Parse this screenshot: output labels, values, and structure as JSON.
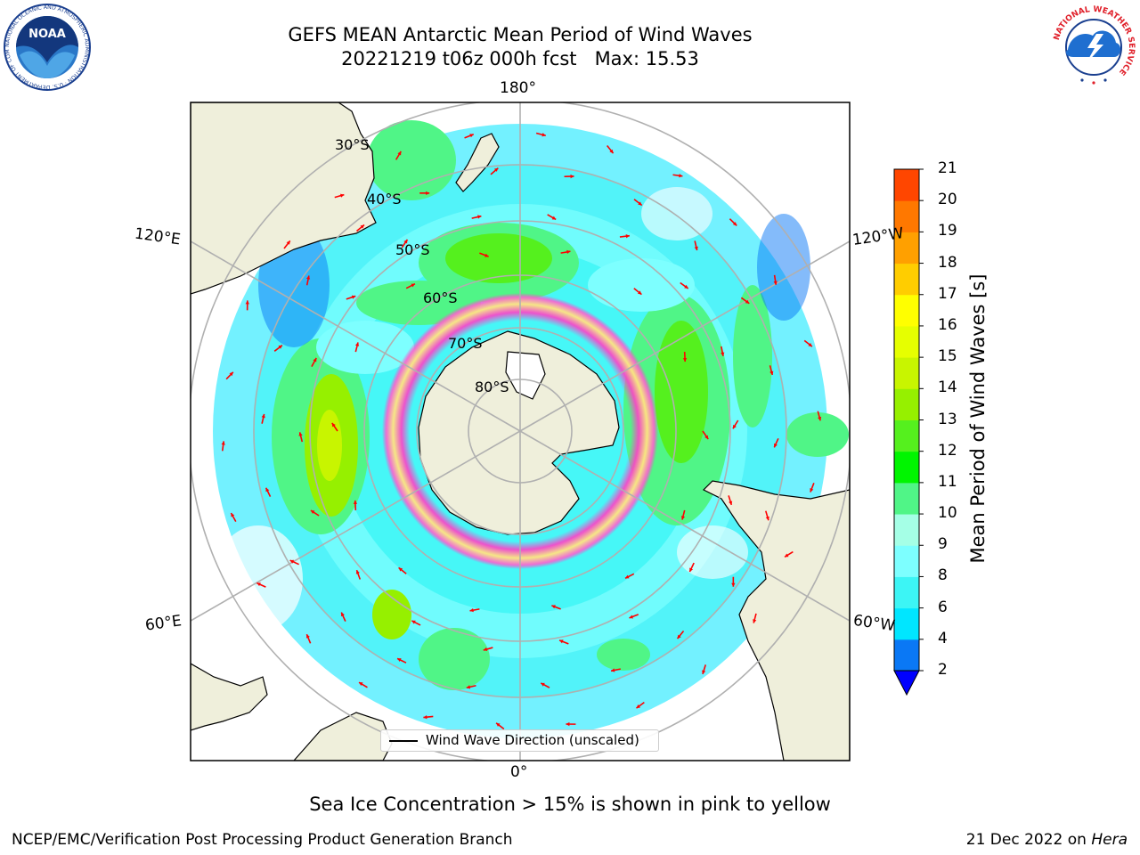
{
  "title": {
    "line1": "GEFS MEAN Antarctic Mean Period of Wind Waves",
    "line2": "20221219 t06z 000h fcst   Max: 15.53"
  },
  "longitude_labels": {
    "top": "180°",
    "bottom": "0°",
    "upper_left": "120°E",
    "lower_left": "60°E",
    "upper_right": "120°W",
    "lower_right": "60°W"
  },
  "latitude_labels": [
    "30°S",
    "40°S",
    "50°S",
    "60°S",
    "70°S",
    "80°S"
  ],
  "legend": {
    "label": "Wind Wave Direction (unscaled)"
  },
  "colorbar": {
    "title": "Mean Period of Wind Waves [s]",
    "ticks": [
      "2",
      "4",
      "6",
      "8",
      "9",
      "10",
      "11",
      "12",
      "13",
      "14",
      "15",
      "16",
      "17",
      "18",
      "19",
      "20",
      "21"
    ],
    "colors": [
      "#0a78f5",
      "#00e6ff",
      "#3cf5f5",
      "#7dffff",
      "#a5ffe6",
      "#50f587",
      "#00f500",
      "#55f01e",
      "#96f000",
      "#c8f500",
      "#e6ff00",
      "#ffff00",
      "#ffcd00",
      "#ffa000",
      "#ff7800",
      "#ff4600",
      "#ff1400"
    ],
    "under_color": "#0000ff"
  },
  "caption": "Sea Ice Concentration > 15% is shown in pink to yellow",
  "footer": {
    "left": "NCEP/EMC/Verification Post Processing Product Generation Branch",
    "right_prefix": "21 Dec 2022 on ",
    "right_machine": "Hera"
  },
  "logos": {
    "noaa": "NOAA",
    "noaa_ring": "NATIONAL OCEANIC AND ATMOSPHERIC ADMINISTRATION · U.S. DEPARTMENT OF COMMERCE",
    "nws_ring": "NATIONAL WEATHER SERVICE"
  },
  "map_colors": {
    "land": "#efefdb",
    "ocean_none": "#ffffff",
    "grid": "#b0b0b0",
    "arrow": "#ff0000",
    "sea_ice_pink": "#ff40c8",
    "sea_ice_yellow": "#ffe680"
  }
}
